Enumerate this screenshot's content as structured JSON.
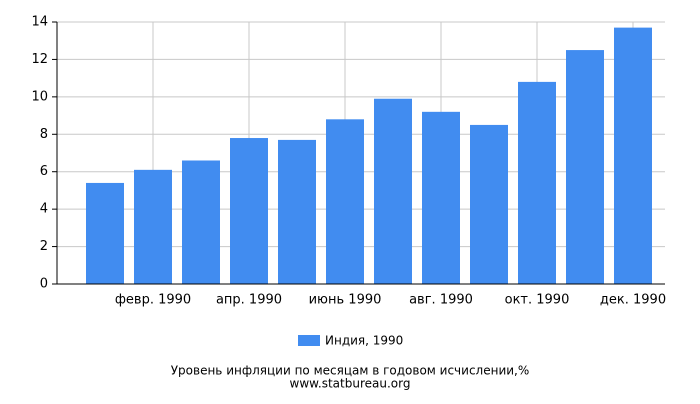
{
  "chart_data": {
    "type": "bar",
    "title": "Уровень инфляции по месяцам в годовом исчислении,%",
    "source": "www.statbureau.org",
    "categories": [
      null,
      "февр. 1990",
      null,
      "апр. 1990",
      null,
      "июнь 1990",
      null,
      "авг. 1990",
      null,
      "окт. 1990",
      null,
      "дек. 1990"
    ],
    "series": [
      {
        "name": "Индия, 1990",
        "color": "#418cf0",
        "values": [
          5.4,
          6.1,
          6.6,
          7.8,
          7.7,
          8.8,
          9.9,
          9.2,
          8.5,
          10.8,
          12.5,
          13.7
        ]
      }
    ],
    "ylim": [
      0,
      14
    ],
    "yticks": [
      0,
      2,
      4,
      6,
      8,
      10,
      12,
      14
    ],
    "grid": true
  }
}
